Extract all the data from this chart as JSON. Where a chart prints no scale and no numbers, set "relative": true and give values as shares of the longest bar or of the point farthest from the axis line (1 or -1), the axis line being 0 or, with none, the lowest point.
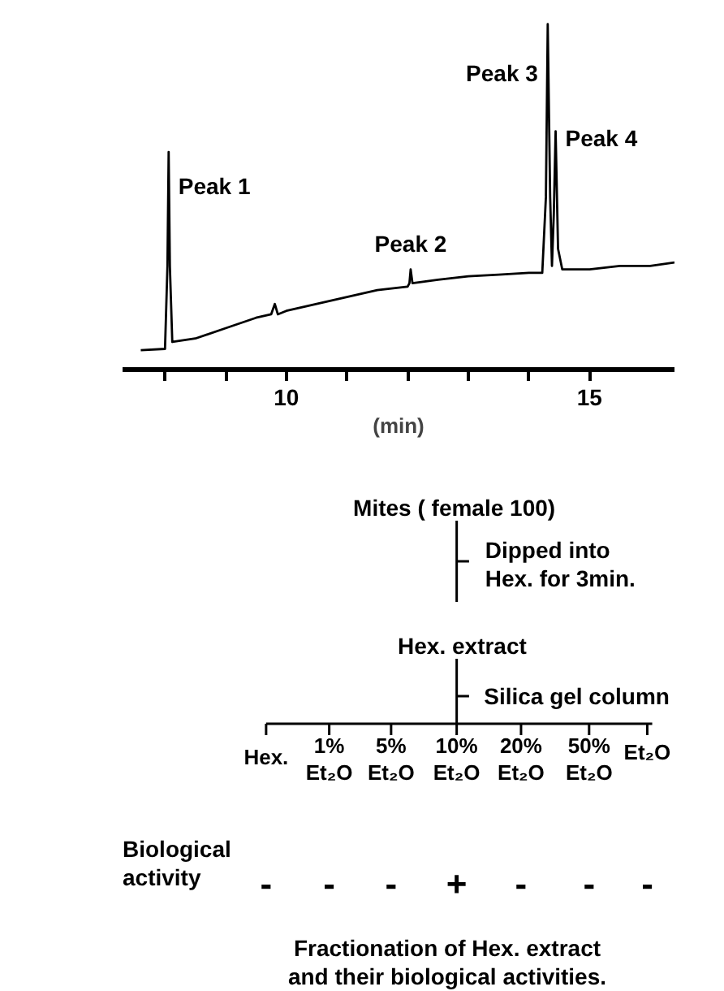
{
  "chart_data": {
    "type": "line",
    "relative": true,
    "xlabel": "(min)",
    "x": [
      7.6,
      8.0,
      8.04,
      8.06,
      8.08,
      8.12,
      8.5,
      9.0,
      9.5,
      9.75,
      9.81,
      9.86,
      10.0,
      10.5,
      11.0,
      11.5,
      12.0,
      12.03,
      12.05,
      12.08,
      12.5,
      13.0,
      13.5,
      14.0,
      14.22,
      14.28,
      14.31,
      14.35,
      14.38,
      14.41,
      14.44,
      14.48,
      14.55,
      15.0,
      15.5,
      16.0,
      16.4
    ],
    "series": [
      {
        "color": "#000000",
        "values": [
          0.056,
          0.06,
          0.3,
          0.63,
          0.3,
          0.08,
          0.09,
          0.12,
          0.15,
          0.16,
          0.19,
          0.16,
          0.17,
          0.19,
          0.21,
          0.23,
          0.24,
          0.25,
          0.29,
          0.25,
          0.26,
          0.27,
          0.275,
          0.28,
          0.28,
          0.5,
          1.0,
          0.5,
          0.3,
          0.45,
          0.69,
          0.35,
          0.29,
          0.29,
          0.3,
          0.3,
          0.31
        ]
      }
    ],
    "xlim": [
      7.3,
      16.4
    ],
    "xticks": [
      {
        "value": 8,
        "label": null
      },
      {
        "value": 9,
        "label": null
      },
      10,
      {
        "value": 11,
        "label": null
      },
      {
        "value": 12,
        "label": null
      },
      {
        "value": 13,
        "label": null
      },
      {
        "value": 14,
        "label": null
      },
      15
    ],
    "marker": "none",
    "line_style": "solid",
    "annotations": [
      {
        "text": "Peak 1",
        "x": 8.06,
        "y": 0.63
      },
      {
        "text": "Peak 2",
        "x": 12.05,
        "y": 0.29
      },
      {
        "text": "Peak 3",
        "x": 14.31,
        "y": 1.0
      },
      {
        "text": "Peak 4",
        "x": 14.44,
        "y": 0.69
      },
      "Mites ( female 100)",
      "Dipped  into\nHex. for 3min.",
      "Hex.  extract",
      "Silica gel column",
      "Hex.",
      "1%\nEt₂O",
      "5%\nEt₂O",
      "10%\nEt₂O",
      "20%\nEt₂O",
      "50%\nEt₂O",
      "Et₂O",
      "Biological\nactivity",
      "-",
      "-",
      "-",
      "+",
      "-",
      "-",
      "-",
      "Fractionation  of  Hex.  extract\nand  their  biological  activities."
    ]
  }
}
